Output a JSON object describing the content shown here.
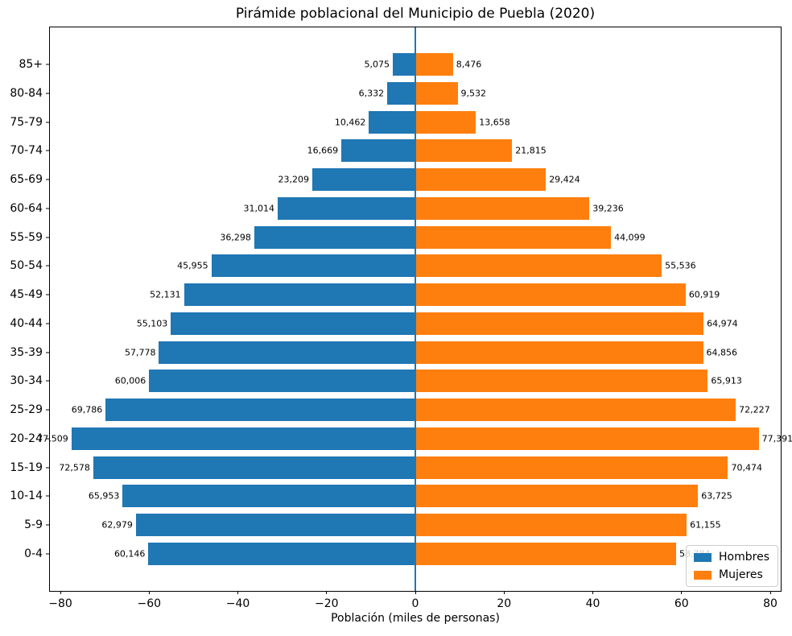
{
  "chart_data": {
    "type": "bar",
    "subtype": "population_pyramid",
    "title": "Pirámide poblacional del Municipio de Puebla (2020)",
    "xlabel": "Población (miles de personas)",
    "categories_top_to_bottom": [
      "85+",
      "80-84",
      "75-79",
      "70-74",
      "65-69",
      "60-64",
      "55-59",
      "50-54",
      "45-49",
      "40-44",
      "35-39",
      "30-34",
      "25-29",
      "20-24",
      "15-19",
      "10-14",
      "5-9",
      "0-4"
    ],
    "series": [
      {
        "name": "Hombres",
        "color": "#1f77b4",
        "side": "left",
        "values": [
          5075,
          6332,
          10462,
          16669,
          23209,
          31014,
          36298,
          45955,
          52131,
          55103,
          57778,
          60006,
          69786,
          77509,
          72578,
          65953,
          62979,
          60146
        ]
      },
      {
        "name": "Mujeres",
        "color": "#ff7f0e",
        "side": "right",
        "values": [
          8476,
          9532,
          13658,
          21815,
          29424,
          39236,
          44099,
          55536,
          60919,
          64974,
          64856,
          65913,
          72227,
          77391,
          70474,
          63725,
          61155,
          58784
        ]
      }
    ],
    "value_unit": "personas",
    "axis_scale": "thousands",
    "xlim": [
      -82.4,
      82.4
    ],
    "xticks": [
      -80,
      -60,
      -40,
      -20,
      0,
      20,
      40,
      60,
      80
    ],
    "xtick_labels": [
      "−80",
      "−60",
      "−40",
      "−20",
      "0",
      "20",
      "40",
      "60",
      "80"
    ],
    "grid": false,
    "zero_line_color": "#1f77b4",
    "legend": {
      "position": "lower right",
      "entries": [
        {
          "label": "Hombres",
          "color": "#1f77b4"
        },
        {
          "label": "Mujeres",
          "color": "#ff7f0e"
        }
      ]
    }
  }
}
